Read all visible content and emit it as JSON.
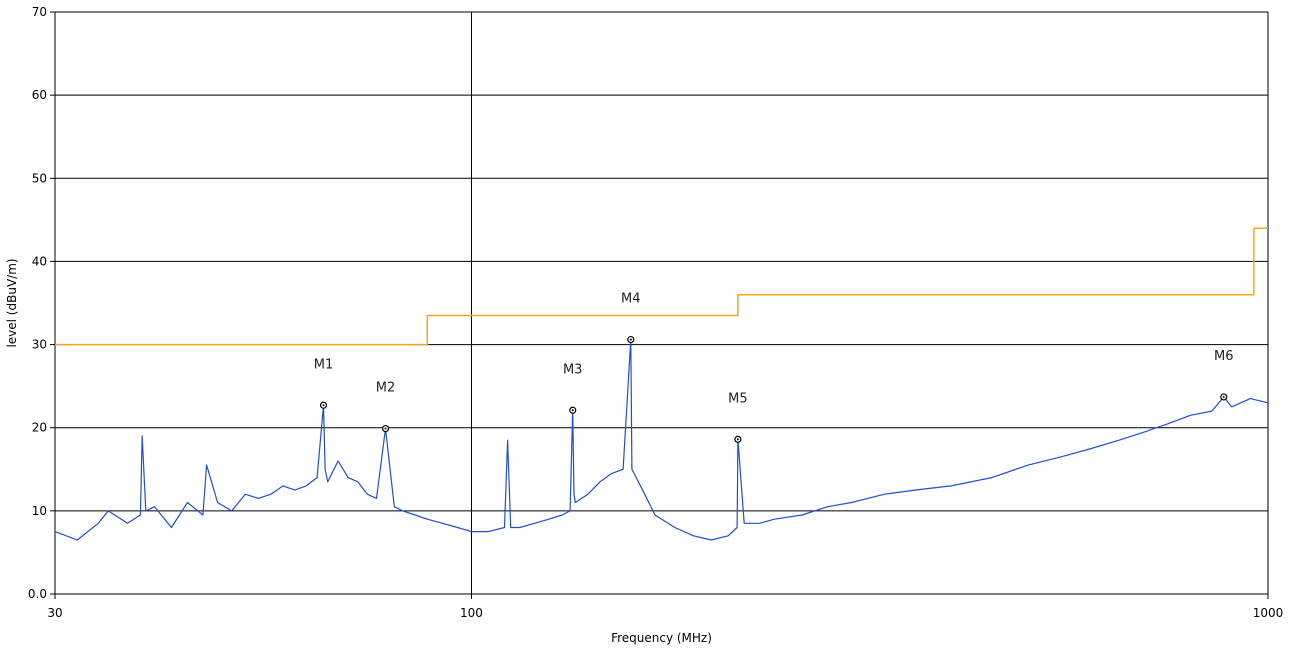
{
  "chart_data": {
    "type": "line",
    "title": "",
    "xlabel": "Frequency (MHz)",
    "ylabel": "level (dBuV/m)",
    "x_scale": "log",
    "xlim": [
      30,
      1000
    ],
    "ylim": [
      0,
      70
    ],
    "x_ticks": [
      30,
      100,
      1000
    ],
    "x_tick_labels": [
      "30",
      "100",
      "1000"
    ],
    "y_ticks": [
      0,
      10,
      20,
      30,
      40,
      50,
      60,
      70
    ],
    "y_tick_labels": [
      "0.0",
      "10",
      "20",
      "30",
      "40",
      "50",
      "60",
      "70"
    ],
    "grid": true,
    "series": [
      {
        "role": "limit",
        "color": "#f5a623",
        "x": [
          30,
          88,
          88,
          216,
          216,
          960,
          960,
          1000
        ],
        "y": [
          30,
          30,
          33.5,
          33.5,
          36,
          36,
          44,
          44
        ]
      },
      {
        "role": "measurement",
        "color": "#1f4fd1",
        "x": [
          30,
          32,
          34,
          35,
          37,
          38.4,
          38.6,
          39,
          40,
          42,
          44,
          46,
          46.5,
          48,
          50,
          52,
          54,
          56,
          58,
          60,
          62,
          64,
          65.2,
          65.5,
          66,
          68,
          70,
          72,
          74,
          76,
          78,
          80,
          82,
          85,
          88,
          92,
          96,
          100,
          105,
          110,
          111,
          112,
          115,
          120,
          125,
          130,
          133,
          134,
          134.5,
          135,
          140,
          145,
          150,
          155,
          158.5,
          159,
          160,
          165,
          170,
          180,
          190,
          200,
          210,
          215.5,
          216,
          220,
          230,
          240,
          260,
          280,
          300,
          330,
          360,
          400,
          450,
          500,
          550,
          600,
          650,
          700,
          750,
          800,
          850,
          880,
          900,
          950,
          1000
        ],
        "y": [
          7.5,
          6.5,
          8.5,
          10,
          8.5,
          9.5,
          19,
          10,
          10.5,
          8,
          11,
          9.5,
          15.5,
          11,
          10,
          12,
          11.5,
          12,
          13,
          12.5,
          13,
          14,
          22.7,
          15,
          13.5,
          16,
          14,
          13.5,
          12,
          11.5,
          19.9,
          10.5,
          10,
          9.5,
          9,
          8.5,
          8.0,
          7.5,
          7.5,
          8,
          18.5,
          8,
          8,
          8.5,
          9,
          9.5,
          10,
          22.1,
          12,
          11,
          12,
          13.5,
          14.5,
          15,
          30.6,
          15,
          14.5,
          12,
          9.5,
          8,
          7,
          6.5,
          7,
          8,
          18.6,
          8.5,
          8.5,
          9,
          9.5,
          10.5,
          11,
          12,
          12.5,
          13,
          14,
          15.5,
          16.5,
          17.5,
          18.5,
          19.5,
          20.5,
          21.5,
          22,
          23.7,
          22.5,
          23.5,
          23
        ]
      }
    ],
    "markers": [
      {
        "label": "M1",
        "freq": 65.2,
        "level": 22.7
      },
      {
        "label": "M2",
        "freq": 78,
        "level": 19.9
      },
      {
        "label": "M3",
        "freq": 134,
        "level": 22.1
      },
      {
        "label": "M4",
        "freq": 158.5,
        "level": 30.6
      },
      {
        "label": "M5",
        "freq": 216,
        "level": 18.6
      },
      {
        "label": "M6",
        "freq": 880,
        "level": 23.7
      }
    ]
  }
}
